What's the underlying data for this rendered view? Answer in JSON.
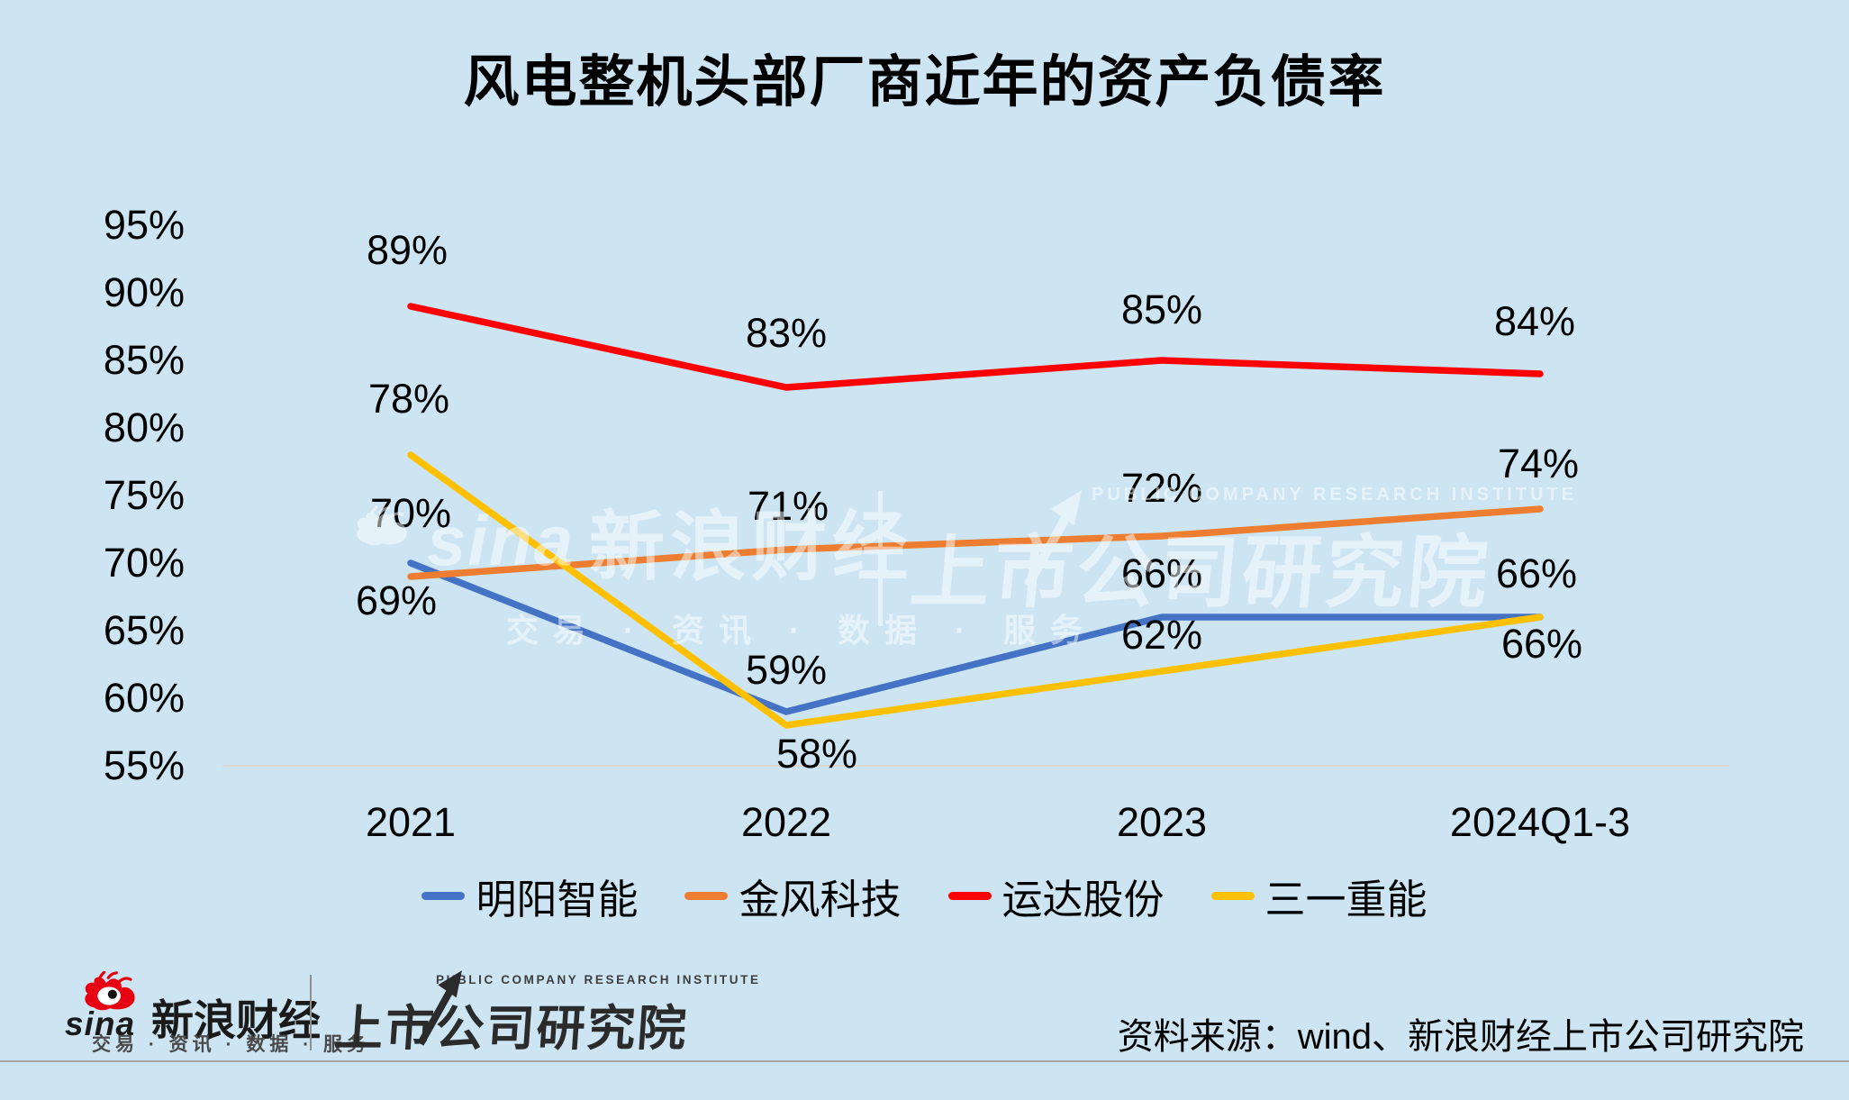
{
  "title": "风电整机头部厂商近年的资产负债率",
  "chart_data": {
    "type": "line",
    "title": "风电整机头部厂商近年的资产负债率",
    "categories": [
      "2021",
      "2022",
      "2023",
      "2024Q1-3"
    ],
    "series": [
      {
        "name": "明阳智能",
        "color": "#4472C4",
        "values": [
          70,
          59,
          66,
          66
        ]
      },
      {
        "name": "金风科技",
        "color": "#ED7D31",
        "values": [
          69,
          71,
          72,
          74
        ]
      },
      {
        "name": "运达股份",
        "color": "#FF0000",
        "values": [
          89,
          83,
          85,
          84
        ]
      },
      {
        "name": "三一重能",
        "color": "#FFC000",
        "values": [
          78,
          58,
          62,
          66
        ]
      }
    ],
    "ylim": [
      55,
      95
    ],
    "y_tick_step": 5,
    "y_ticks": [
      "95%",
      "90%",
      "85%",
      "80%",
      "75%",
      "70%",
      "65%",
      "60%",
      "55%"
    ],
    "grid": false,
    "axis_line_color": "#DBD8D2",
    "data_labels": true,
    "data_label_format": "percent",
    "legend_position": "bottom",
    "label_offsets": [
      [
        [
          0,
          -55
        ],
        [
          0,
          -46
        ],
        [
          0,
          -48
        ],
        [
          -4,
          -48
        ]
      ],
      [
        [
          -16,
          27
        ],
        [
          2,
          -48
        ],
        [
          0,
          -53
        ],
        [
          -2,
          -50
        ]
      ],
      [
        [
          -4,
          -62
        ],
        [
          0,
          -60
        ],
        [
          0,
          -56
        ],
        [
          -6,
          -58
        ]
      ],
      [
        [
          -2,
          -62
        ],
        [
          34,
          32
        ],
        [
          0,
          -40
        ],
        [
          2,
          30
        ]
      ]
    ],
    "background": "#CDE5F3"
  },
  "watermark": {
    "sina_text": "sina",
    "brand": "新浪财经",
    "tagline": "交易 · 资讯 · 数据 · 服务",
    "institute_en": "PUBLIC COMPANY RESEARCH INSTITUTE",
    "institute": "上市公司研究院"
  },
  "footer": {
    "sina_text": "sina",
    "brand": "新浪财经",
    "tagline": "交易 · 资讯 · 数据 · 服务",
    "institute_en": "PUBLIC COMPANY RESEARCH INSTITUTE",
    "institute": "上市公司研究院",
    "source": "资料来源：wind、新浪财经上市公司研究院",
    "sina_red": "#E60012"
  }
}
